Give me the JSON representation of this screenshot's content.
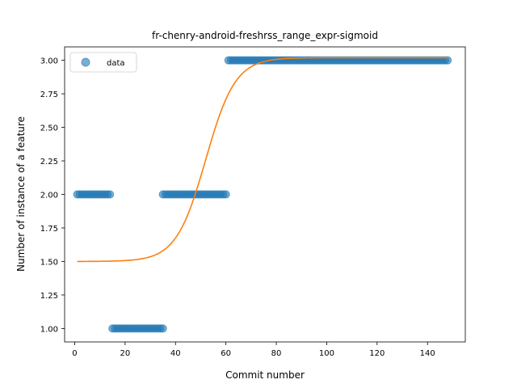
{
  "chart_data": {
    "type": "scatter",
    "title": "fr-chenry-android-freshrss_range_expr-sigmoid",
    "xlabel": "Commit number",
    "ylabel": "Number of instance of a feature",
    "xlim": [
      -4,
      155
    ],
    "ylim": [
      0.9,
      3.1
    ],
    "xticks": [
      0,
      20,
      40,
      60,
      80,
      100,
      120,
      140
    ],
    "yticks": [
      1.0,
      1.25,
      1.5,
      1.75,
      2.0,
      2.25,
      2.5,
      2.75,
      3.0
    ],
    "legend": {
      "position": "top-left",
      "entries": [
        "data"
      ]
    },
    "series": [
      {
        "name": "data",
        "kind": "scatter",
        "color": "#1f77b4",
        "segments": [
          {
            "x_start": 1,
            "x_end": 14,
            "y": 2
          },
          {
            "x_start": 15,
            "x_end": 35,
            "y": 1
          },
          {
            "x_start": 35,
            "x_end": 60,
            "y": 2
          },
          {
            "x_start": 61,
            "x_end": 148,
            "y": 3
          }
        ]
      },
      {
        "kind": "line",
        "color": "#ff7f0e",
        "model": "sigmoid",
        "x_range": [
          1,
          148
        ],
        "params": {
          "base": 1.5,
          "amplitude": 1.52,
          "midpoint": 52,
          "rate": 0.17
        }
      }
    ]
  }
}
